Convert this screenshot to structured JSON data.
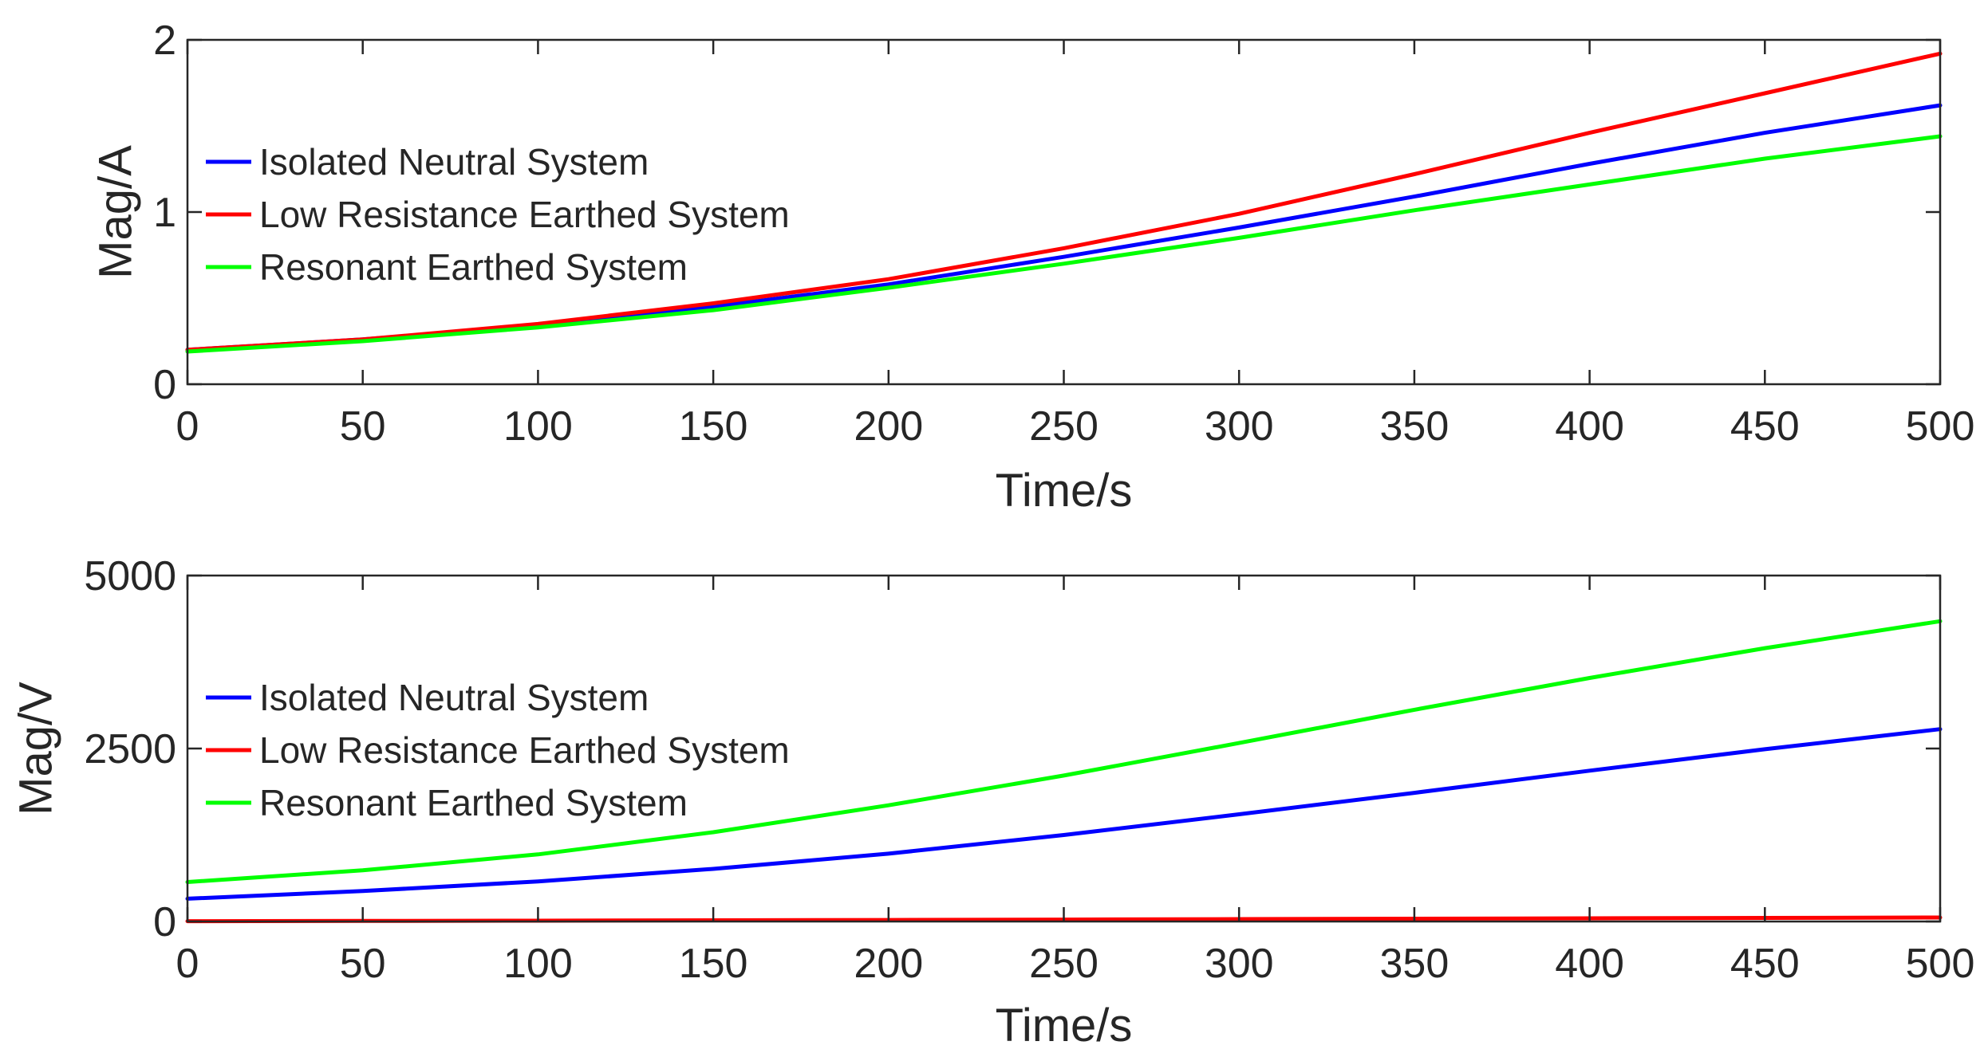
{
  "chart_data": [
    {
      "type": "line",
      "title": "",
      "xlabel": "Time/s",
      "ylabel": "Mag/A",
      "xlim": [
        0,
        500
      ],
      "ylim": [
        0,
        2
      ],
      "xticks": [
        0,
        50,
        100,
        150,
        200,
        250,
        300,
        350,
        400,
        450,
        500
      ],
      "yticks": [
        0,
        1,
        2
      ],
      "yticklabels": [
        "0",
        "1",
        "2"
      ],
      "grid": false,
      "legend": "left",
      "x": [
        0,
        50,
        100,
        150,
        200,
        250,
        300,
        350,
        400,
        450,
        500
      ],
      "series": [
        {
          "name": "Isolated Neutral System",
          "color": "#0000ff",
          "values": [
            0.2,
            0.26,
            0.34,
            0.45,
            0.58,
            0.74,
            0.91,
            1.09,
            1.28,
            1.46,
            1.62
          ]
        },
        {
          "name": "Low Resistance Earthed System",
          "color": "#ff0000",
          "values": [
            0.2,
            0.26,
            0.35,
            0.47,
            0.61,
            0.79,
            0.99,
            1.22,
            1.46,
            1.69,
            1.92
          ]
        },
        {
          "name": "Resonant Earthed System",
          "color": "#00ff00",
          "values": [
            0.19,
            0.25,
            0.33,
            0.43,
            0.56,
            0.7,
            0.85,
            1.01,
            1.16,
            1.31,
            1.44
          ]
        }
      ]
    },
    {
      "type": "line",
      "title": "",
      "xlabel": "Time/s",
      "ylabel": "Mag/V",
      "xlim": [
        0,
        500
      ],
      "ylim": [
        0,
        5000
      ],
      "xticks": [
        0,
        50,
        100,
        150,
        200,
        250,
        300,
        350,
        400,
        450,
        500
      ],
      "yticks": [
        0,
        2500,
        5000
      ],
      "yticklabels": [
        "0",
        "2500",
        "5000"
      ],
      "grid": false,
      "legend": "left",
      "x": [
        0,
        50,
        100,
        150,
        200,
        250,
        300,
        350,
        400,
        450,
        500
      ],
      "series": [
        {
          "name": "Isolated Neutral System",
          "color": "#0000ff",
          "values": [
            330,
            440,
            580,
            760,
            980,
            1250,
            1550,
            1860,
            2180,
            2490,
            2780
          ]
        },
        {
          "name": "Low Resistance Earthed System",
          "color": "#ff0000",
          "values": [
            5,
            8,
            12,
            17,
            22,
            28,
            34,
            40,
            46,
            52,
            58
          ]
        },
        {
          "name": "Resonant Earthed System",
          "color": "#00ff00",
          "values": [
            570,
            740,
            970,
            1290,
            1680,
            2110,
            2580,
            3060,
            3520,
            3950,
            4340
          ]
        }
      ]
    }
  ]
}
